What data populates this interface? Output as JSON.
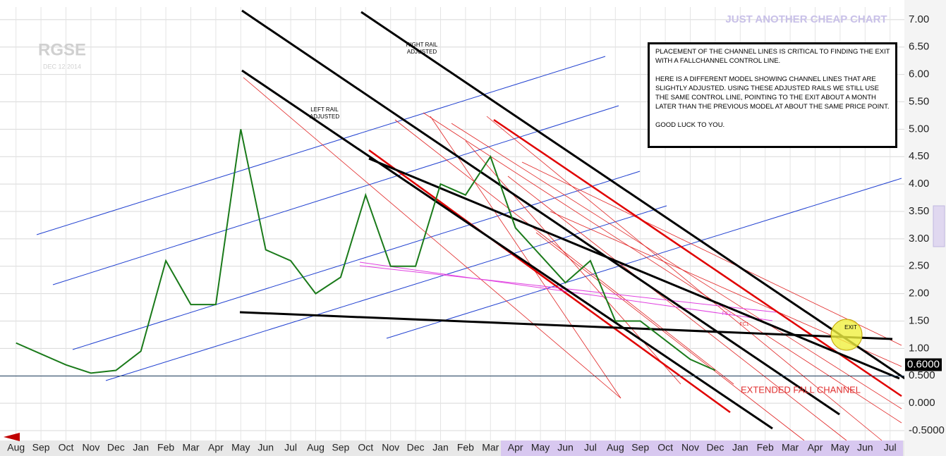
{
  "chart_data": {
    "type": "line",
    "title": "JUST ANOTHER CHEAP CHART",
    "ticker": "RGSE",
    "date": "DEC 12 2014",
    "categories": [
      "Aug",
      "Sep",
      "Oct",
      "Nov",
      "Dec",
      "Jan",
      "Feb",
      "Mar",
      "Apr",
      "May",
      "Jun",
      "Jul",
      "Aug",
      "Sep",
      "Oct",
      "Nov",
      "Dec",
      "Jan",
      "Feb",
      "Mar",
      "Apr",
      "May",
      "Jun",
      "Jul",
      "Aug",
      "Sep",
      "Oct",
      "Nov",
      "Dec",
      "Jan",
      "Feb",
      "Mar",
      "Apr",
      "May",
      "Jun",
      "Jul"
    ],
    "values": [
      1.1,
      0.9,
      0.7,
      0.55,
      0.6,
      0.95,
      2.6,
      1.8,
      1.8,
      5.0,
      2.8,
      2.6,
      2.0,
      2.3,
      3.8,
      2.5,
      2.5,
      4.0,
      3.8,
      4.5,
      3.2,
      2.7,
      2.2,
      2.6,
      1.5,
      1.5,
      1.15,
      0.8,
      0.6,
      null,
      null,
      null,
      null,
      null,
      null,
      null
    ],
    "color": "#1a7a1a",
    "ylim": [
      -0.68,
      7.23
    ],
    "yticks": [
      {
        "value": 7,
        "label": "7.00"
      },
      {
        "value": 6.5,
        "label": "6.50"
      },
      {
        "value": 6,
        "label": "6.00"
      },
      {
        "value": 5.5,
        "label": "5.50"
      },
      {
        "value": 5,
        "label": "5.00"
      },
      {
        "value": 4.5,
        "label": "4.50"
      },
      {
        "value": 4,
        "label": "4.00"
      },
      {
        "value": 3.5,
        "label": "3.50"
      },
      {
        "value": 3,
        "label": "3.00"
      },
      {
        "value": 2.5,
        "label": "2.50"
      },
      {
        "value": 2,
        "label": "2.00"
      },
      {
        "value": 1.5,
        "label": "1.50"
      },
      {
        "value": 1,
        "label": "1.00"
      },
      {
        "value": 0.5,
        "label": "0.500"
      },
      {
        "value": 0,
        "label": "0.000"
      },
      {
        "value": -0.5,
        "label": "-0.5000"
      }
    ],
    "grid": true,
    "last_price": {
      "value": 0.6,
      "label": "0.6000"
    },
    "annotations": {
      "right_rail": [
        "RIGHT RAIL",
        "ADJUSTED"
      ],
      "left_rail": [
        "LEFT RAIL",
        "ADJUSTED"
      ],
      "extended_fall_channel": "EXTENDED FALL CHANNEL",
      "exit": "EXIT",
      "fc1": "FC1",
      "fc2": "FC2"
    },
    "note": [
      "PLACEMENT OF THE CHANNEL LINES IS CRITICAL TO FINDING THE EXIT WITH A FALLCHANNEL CONTROL LINE.",
      "HERE IS A DIFFERENT MODEL SHOWING CHANNEL LINES THAT ARE SLIGHTLY ADJUSTED. USING THESE ADJUSTED RAILS WE STILL USE THE SAME CONTROL LINE, POINTING TO THE EXIT ABOUT A MONTH LATER THAN THE PREVIOUS MODEL AT ABOUT THE SAME PRICE POINT.",
      "GOOD LUCK TO YOU."
    ]
  }
}
